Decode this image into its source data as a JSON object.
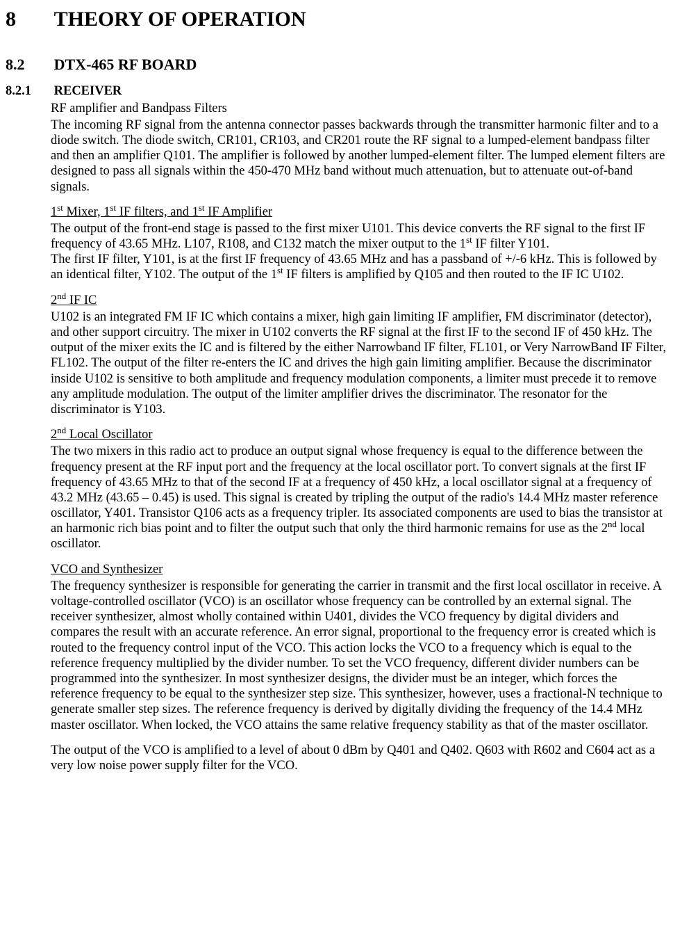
{
  "h1": {
    "num": "8",
    "title": "THEORY OF OPERATION"
  },
  "h2": {
    "num": "8.2",
    "title": "DTX-465 RF BOARD"
  },
  "h3": {
    "num": "8.2.1",
    "title": "RECEIVER"
  },
  "sections": {
    "rf_amp": {
      "heading": "RF amplifier and Bandpass Filters",
      "p1": "The incoming RF signal from the antenna connector passes backwards through the transmitter harmonic filter and to a diode switch.  The diode switch, CR101, CR103, and CR201 route the RF signal to a lumped-element bandpass filter and then an amplifier Q101.  The amplifier is followed by another lumped-element filter. The lumped element filters are designed to pass all signals within the 450-470 MHz band without much attenuation, but to attenuate out-of-band signals."
    },
    "mixer": {
      "heading_pre": "1",
      "heading_sup1": "st",
      "heading_mid1": " Mixer, 1",
      "heading_sup2": "st",
      "heading_mid2": " IF filters, and 1",
      "heading_sup3": "st",
      "heading_post": " IF Amplifier",
      "p1_pre": "The output of the front-end stage is passed to the first mixer U101.  This device converts the RF signal to the first IF frequency of 43.65 MHz. L107, R108, and C132 match the mixer output to the 1",
      "p1_sup": "st",
      "p1_post": " IF filter Y101.",
      "p2_pre": "The first IF filter, Y101, is at the first IF frequency of 43.65 MHz and has a passband of +/-6 kHz.  This is followed by an identical filter, Y102.  The output of the 1",
      "p2_sup": "st",
      "p2_post": " IF filters is amplified by Q105 and then routed to the IF IC U102."
    },
    "if_ic": {
      "heading_pre": "2",
      "heading_sup": "nd",
      "heading_post": " IF IC",
      "p1": "U102 is an integrated FM IF IC which contains a mixer, high gain limiting IF amplifier, FM discriminator (detector), and other support circuitry.  The mixer in U102 converts the RF signal at the first IF to the second IF of 450 kHz.  The output of the mixer exits the IC and is filtered by the either Narrowband IF filter, FL101, or Very NarrowBand IF Filter, FL102.  The output of the filter re-enters the IC and drives the high gain limiting amplifier.  Because the discriminator inside U102 is sensitive to both amplitude and frequency modulation components, a limiter must precede it to remove any amplitude modulation. The output of the limiter amplifier drives the discriminator.  The resonator for the discriminator is Y103."
    },
    "local_osc": {
      "heading_pre": "2",
      "heading_sup": "nd",
      "heading_post": " Local Oscillator",
      "p1_pre": "The two mixers in this radio act to produce an output signal whose frequency is equal to the difference between the frequency present at the RF input port and the frequency at the local oscillator port.  To convert signals at the first IF frequency of 43.65 MHz to that of the second IF at a frequency of 450 kHz, a local oscillator signal at a frequency of 43.2 MHz (43.65 – 0.45) is used.  This signal is created by tripling the output of the radio's 14.4 MHz master reference oscillator, Y401.  Transistor Q106 acts as a frequency tripler.  Its associated components are used to bias the transistor at an harmonic rich bias point and to filter the output such that only the third harmonic remains for use as the 2",
      "p1_sup": "nd",
      "p1_post": " local oscillator."
    },
    "vco": {
      "heading": "VCO and Synthesizer",
      "p1": "The frequency synthesizer is responsible for generating the carrier in transmit and the first local oscillator in receive.  A voltage-controlled oscillator (VCO) is an oscillator whose frequency can be controlled by an external signal.  The receiver synthesizer, almost wholly contained within U401, divides the VCO frequency by digital dividers and compares the result with an accurate reference.  An error signal, proportional to the frequency error is created which is routed to the frequency control input of the VCO.  This action locks the VCO to a frequency which is equal to the reference frequency multiplied by the divider number.  To set the VCO frequency, different divider numbers can be programmed into the synthesizer.  In most synthesizer designs, the divider must be an integer, which forces the reference frequency to be equal to the synthesizer step size.  This synthesizer, however, uses a fractional-N technique to generate smaller step sizes. The reference frequency is derived by digitally dividing the frequency of the 14.4 MHz master oscillator.  When locked, the VCO attains the same relative frequency stability as that of the master oscillator.",
      "p2": "The output of the VCO is amplified to a level of about 0 dBm by Q401 and Q402.  Q603 with R602 and C604 act as a very low noise power supply filter for the VCO."
    }
  }
}
